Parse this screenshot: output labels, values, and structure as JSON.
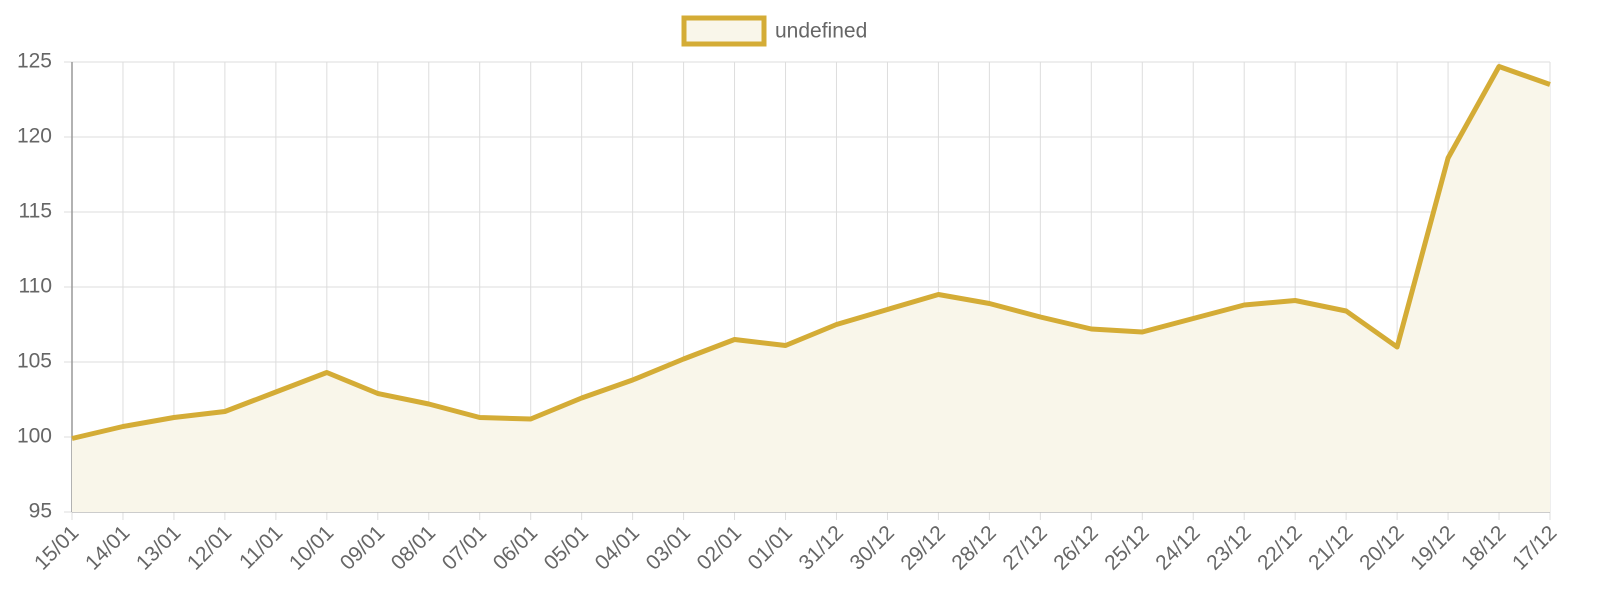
{
  "chart_data": {
    "type": "line",
    "categories": [
      "15/01",
      "14/01",
      "13/01",
      "12/01",
      "11/01",
      "10/01",
      "09/01",
      "08/01",
      "07/01",
      "06/01",
      "05/01",
      "04/01",
      "03/01",
      "02/01",
      "01/01",
      "31/12",
      "30/12",
      "29/12",
      "28/12",
      "27/12",
      "26/12",
      "25/12",
      "24/12",
      "23/12",
      "22/12",
      "21/12",
      "20/12",
      "19/12",
      "18/12",
      "17/12"
    ],
    "series": [
      {
        "name": "undefined",
        "color": "#d4ac36",
        "fill": "#f9f6ea",
        "values": [
          99.9,
          100.7,
          101.3,
          101.7,
          103.0,
          104.3,
          102.9,
          102.2,
          101.3,
          101.2,
          102.6,
          103.8,
          105.2,
          106.5,
          106.1,
          107.5,
          108.5,
          109.5,
          108.9,
          108.0,
          107.2,
          107.0,
          107.9,
          108.8,
          109.1,
          108.4,
          106.0,
          118.6,
          124.7,
          123.5
        ]
      }
    ],
    "ylim": [
      95,
      125
    ],
    "yticks": [
      95,
      100,
      105,
      110,
      115,
      120,
      125
    ],
    "grid": true
  }
}
